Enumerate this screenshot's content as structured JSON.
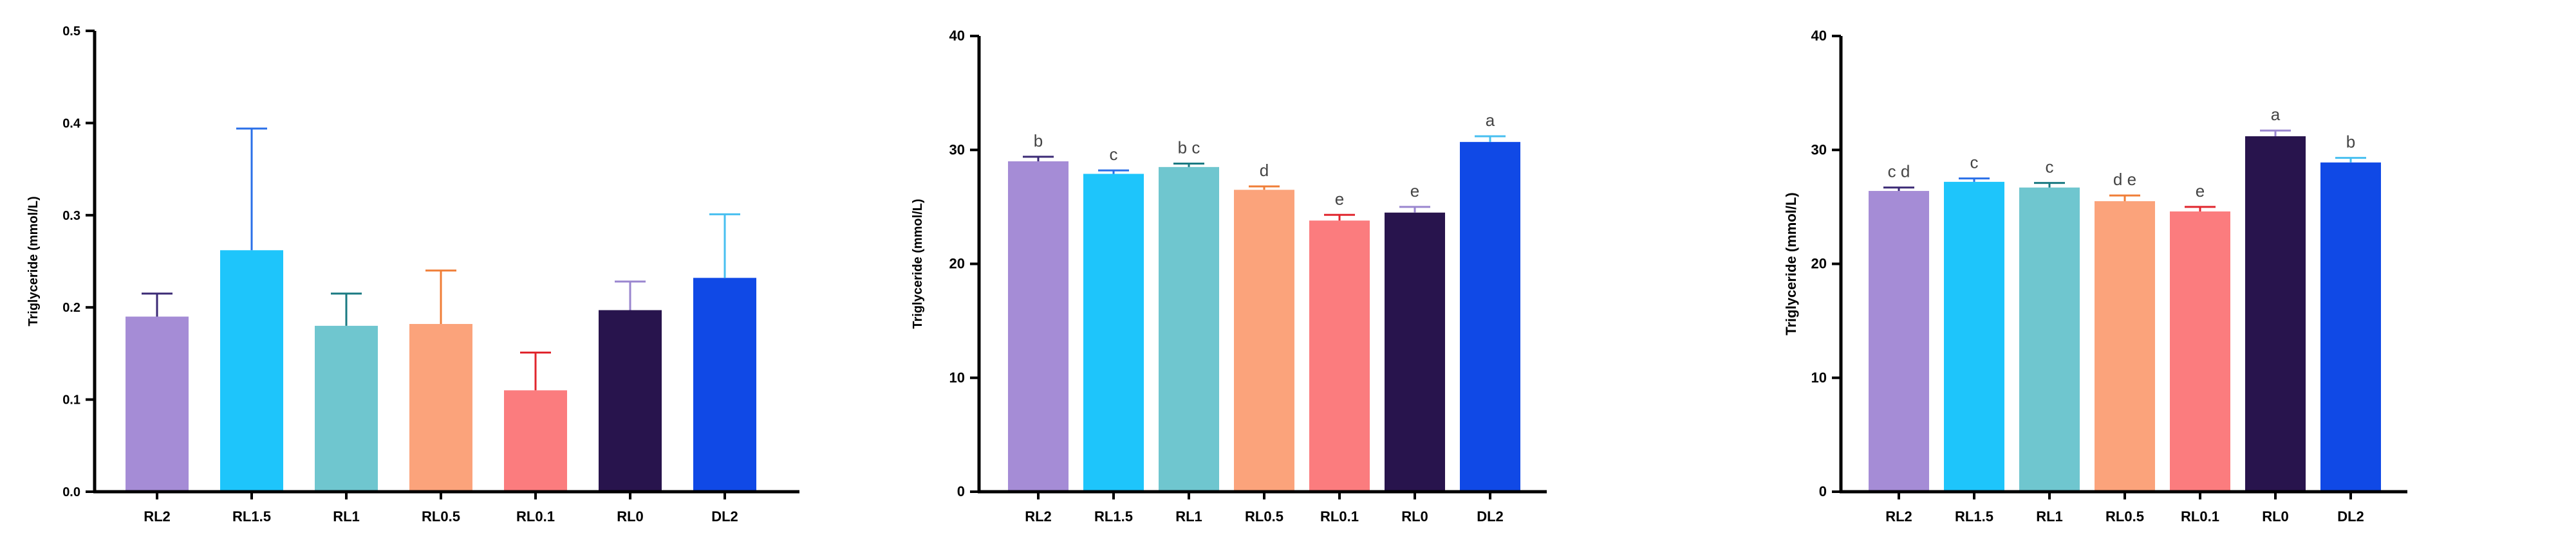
{
  "chart_data": [
    {
      "type": "bar",
      "ylabel": "Triglyceride (mmol/L)",
      "categories": [
        "RL2",
        "RL1.5",
        "RL1",
        "RL0.5",
        "RL0.1",
        "RL0",
        "DL2"
      ],
      "values": [
        0.19,
        0.262,
        0.18,
        0.182,
        0.11,
        0.197,
        0.232
      ],
      "errors": [
        0.025,
        0.132,
        0.035,
        0.058,
        0.041,
        0.031,
        0.069
      ],
      "ylim": [
        0,
        0.5
      ],
      "yticks": [
        "0.0",
        "0.1",
        "0.2",
        "0.3",
        "0.4",
        "0.5"
      ],
      "colors": [
        "#a58cd6",
        "#1ec5fb",
        "#6fc6cf",
        "#fba37b",
        "#fb7c7e",
        "#28144d",
        "#1049e6"
      ],
      "error_colors": [
        "#3b2a75",
        "#2a6fe8",
        "#1a7a82",
        "#f07e37",
        "#e0262e",
        "#9a86cf",
        "#47bff0"
      ],
      "significance": [
        "",
        "",
        "",
        "",
        "",
        "",
        ""
      ]
    },
    {
      "type": "bar",
      "ylabel": "Triglyceride (mmol/L)",
      "categories": [
        "RL2",
        "RL1.5",
        "RL1",
        "RL0.5",
        "RL0.1",
        "RL0",
        "DL2"
      ],
      "values": [
        29.0,
        27.9,
        28.5,
        26.5,
        23.8,
        24.5,
        30.7
      ],
      "errors": [
        0.4,
        0.3,
        0.3,
        0.3,
        0.5,
        0.5,
        0.5
      ],
      "ylim": [
        0,
        40
      ],
      "yticks": [
        "0",
        "10",
        "20",
        "30",
        "40"
      ],
      "colors": [
        "#a58cd6",
        "#1ec5fb",
        "#6fc6cf",
        "#fba37b",
        "#fb7c7e",
        "#28144d",
        "#1049e6"
      ],
      "error_colors": [
        "#3b2a75",
        "#2a6fe8",
        "#1a7a82",
        "#f07e37",
        "#e0262e",
        "#9a86cf",
        "#47bff0"
      ],
      "significance": [
        "b",
        "c",
        "b c",
        "d",
        "e",
        "e",
        "a"
      ]
    },
    {
      "type": "bar",
      "ylabel": "Triglyceride (mmol/L)",
      "categories": [
        "RL2",
        "RL1.5",
        "RL1",
        "RL0.5",
        "RL0.1",
        "RL0",
        "DL2"
      ],
      "values": [
        26.4,
        27.2,
        26.7,
        25.5,
        24.6,
        31.2,
        28.9
      ],
      "errors": [
        0.3,
        0.3,
        0.4,
        0.5,
        0.4,
        0.5,
        0.4
      ],
      "ylim": [
        0,
        40
      ],
      "yticks": [
        "0",
        "10",
        "20",
        "30",
        "40"
      ],
      "colors": [
        "#a58cd6",
        "#1ec5fb",
        "#6fc6cf",
        "#fba37b",
        "#fb7c7e",
        "#28144d",
        "#1049e6"
      ],
      "error_colors": [
        "#3b2a75",
        "#2a6fe8",
        "#1a7a82",
        "#f07e37",
        "#e0262e",
        "#9a86cf",
        "#47bff0"
      ],
      "significance": [
        "c d",
        "c",
        "c",
        "d e",
        "e",
        "a",
        "b"
      ]
    }
  ]
}
